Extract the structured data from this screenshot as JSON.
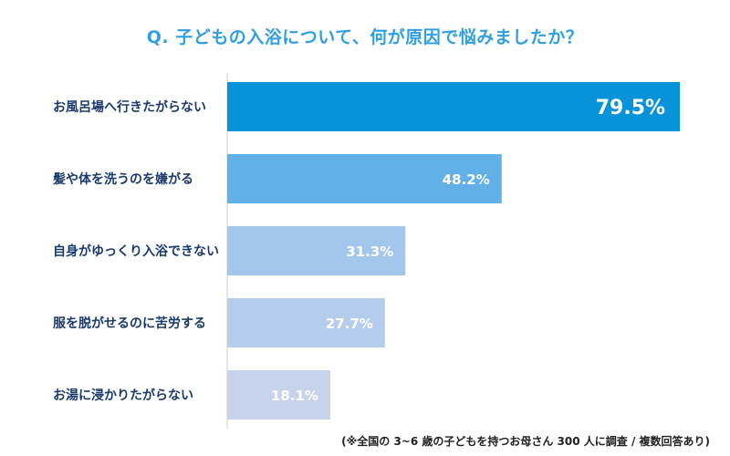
{
  "chart_data": {
    "type": "bar",
    "orientation": "horizontal",
    "title": "Q. 子どもの入浴について、何が原因で悩みましたか？",
    "categories": [
      "お風呂場へ行きたがらない",
      "髪や体を洗うのを嫌がる",
      "自身がゆっくり入浴できない",
      "服を脱がせるのに苦労する",
      "お湯に浸かりたがらない"
    ],
    "values": [
      79.5,
      48.2,
      31.3,
      27.7,
      18.1
    ],
    "value_labels": [
      "79.5%",
      "48.2%",
      "31.3%",
      "27.7%",
      "18.1%"
    ],
    "unit": "%",
    "xlim": [
      0,
      100
    ],
    "colors": [
      "#0793d9",
      "#62b0e8",
      "#a3c7ec",
      "#b5cdec",
      "#c6d3ea"
    ],
    "grid": false
  },
  "footnote": "(※全国の 3~6 歳の子どもを持つお母さん 300 人に調査 / 複数回答あり)"
}
